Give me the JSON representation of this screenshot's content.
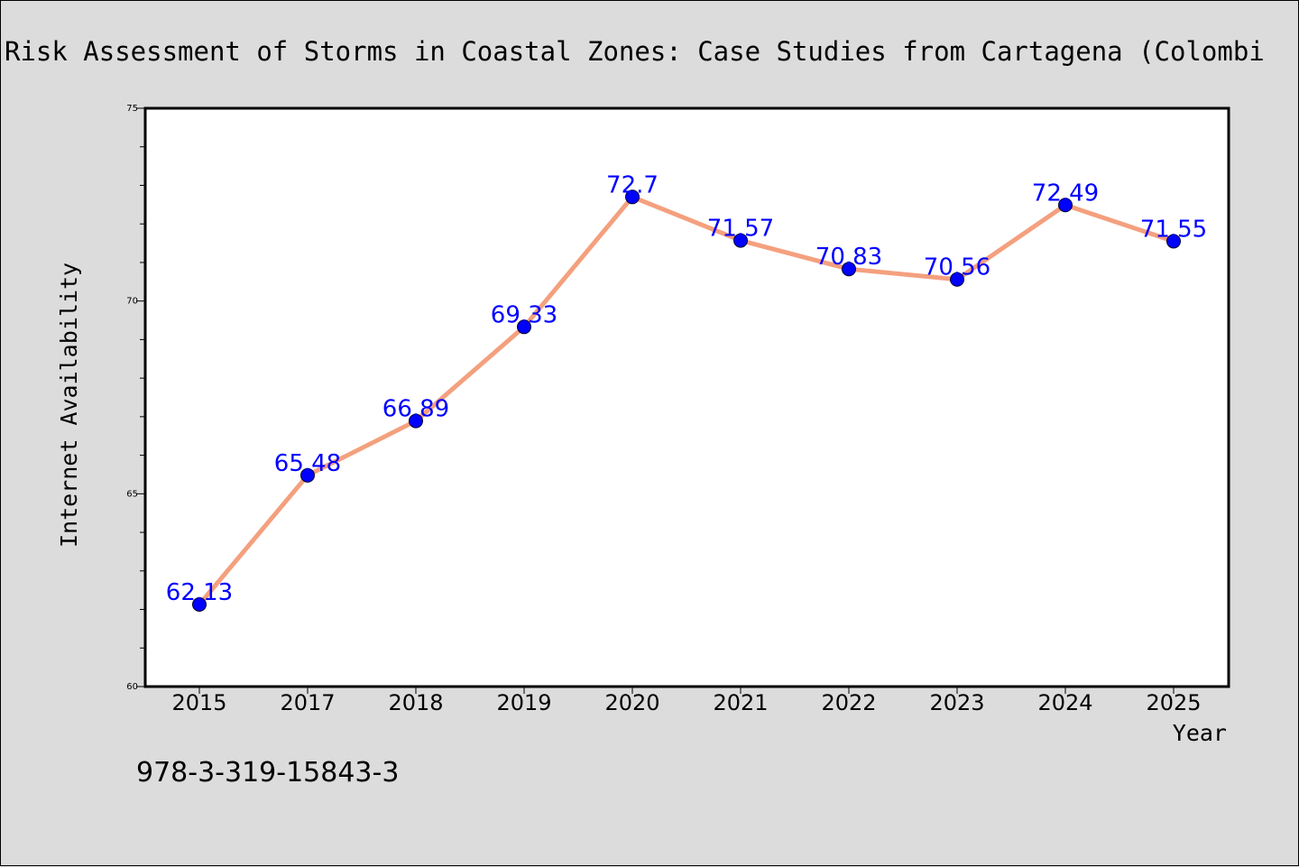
{
  "chart_data": {
    "type": "line",
    "title": "Risk Assessment of Storms in Coastal Zones: Case Studies from Cartagena (Colombi",
    "xlabel": "Year",
    "ylabel": "Internet Availability",
    "categories": [
      "2015",
      "2017",
      "2018",
      "2019",
      "2020",
      "2021",
      "2022",
      "2023",
      "2024",
      "2025"
    ],
    "series": [
      {
        "values": [
          62.13,
          65.48,
          66.89,
          69.33,
          72.7,
          71.57,
          70.83,
          70.56,
          72.49,
          71.55
        ],
        "labels": [
          "62.13",
          "65.48",
          "66.89",
          "69.33",
          "72.7",
          "71.57",
          "70.83",
          "70.56",
          "72.49",
          "71.55"
        ]
      }
    ],
    "ylim": [
      60,
      75
    ],
    "yticks": [
      "60",
      "65",
      "70",
      "75"
    ],
    "grid": false,
    "line_color": "#f4a07e",
    "marker_color": "#0000ff",
    "label_color": "#0000ff"
  },
  "footer_text": "978-3-319-15843-3"
}
